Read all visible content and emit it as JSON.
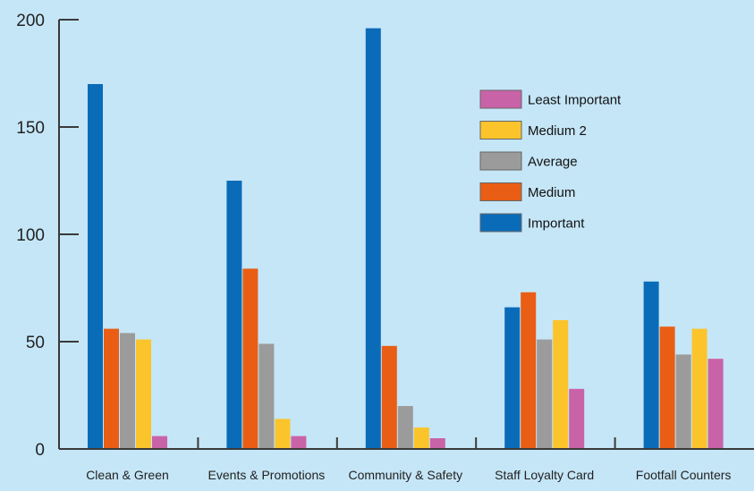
{
  "chart_data": {
    "type": "bar",
    "categories": [
      "Clean & Green",
      "Events & Promotions",
      "Community & Safety",
      "Staff Loyalty Card",
      "Footfall Counters"
    ],
    "series": [
      {
        "name": "Important",
        "color": "#0a6cb8",
        "values": [
          170,
          125,
          196,
          66,
          78
        ]
      },
      {
        "name": "Medium",
        "color": "#e95e14",
        "values": [
          56,
          84,
          48,
          73,
          57
        ]
      },
      {
        "name": "Average",
        "color": "#9b9b9b",
        "values": [
          54,
          49,
          20,
          51,
          44
        ]
      },
      {
        "name": "Medium 2",
        "color": "#fcc42b",
        "values": [
          51,
          14,
          10,
          60,
          56
        ]
      },
      {
        "name": "Least Important",
        "color": "#c963a8",
        "values": [
          6,
          6,
          5,
          28,
          42
        ]
      }
    ],
    "yticks": [
      "0",
      "50",
      "100",
      "150",
      "200"
    ],
    "ylim": [
      0,
      200
    ],
    "legend_order": [
      "Least Important",
      "Medium 2",
      "Average",
      "Medium",
      "Important"
    ],
    "legend_position": "top-right",
    "grid": false
  }
}
